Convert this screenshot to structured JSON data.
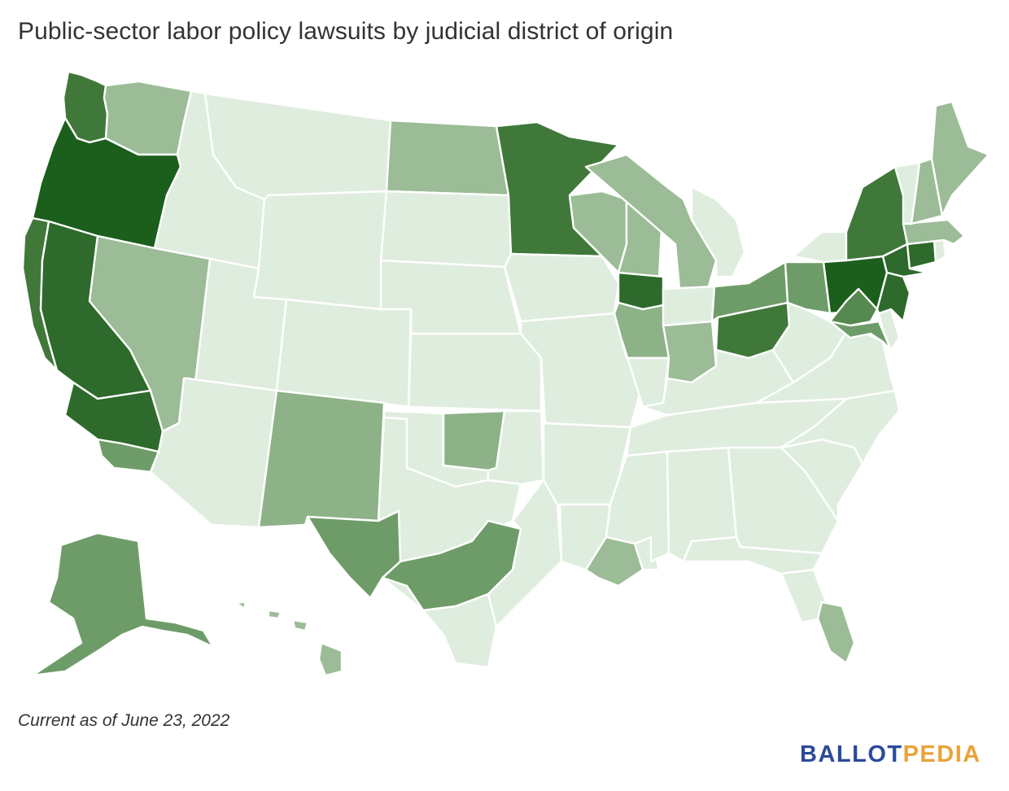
{
  "title": "Public-sector labor policy lawsuits by judicial district of origin",
  "footnote": "Current as of June 23, 2022",
  "logo": {
    "part1": "BALLOT",
    "part2": "PEDIA"
  },
  "colors": {
    "level0": "#dfeddf",
    "level1": "#9bbc96",
    "level2": "#8db287",
    "level3": "#6e9c68",
    "level4": "#55894f",
    "level5": "#40783a",
    "level6": "#2d6a2b",
    "level7": "#1c5e1c",
    "border": "#ffffff",
    "logo_blue": "#2b4a9b",
    "logo_gold": "#e8a33a"
  },
  "regions": [
    {
      "name": "washington-west",
      "level": 5
    },
    {
      "name": "washington-east",
      "level": 1
    },
    {
      "name": "oregon",
      "level": 7
    },
    {
      "name": "california-north",
      "level": 5
    },
    {
      "name": "california-east",
      "level": 6
    },
    {
      "name": "california-south",
      "level": 6
    },
    {
      "name": "california-central-coast",
      "level": 3
    },
    {
      "name": "nevada",
      "level": 1
    },
    {
      "name": "idaho",
      "level": 0
    },
    {
      "name": "montana",
      "level": 0
    },
    {
      "name": "wyoming",
      "level": 0
    },
    {
      "name": "utah",
      "level": 0
    },
    {
      "name": "arizona",
      "level": 0
    },
    {
      "name": "colorado",
      "level": 0
    },
    {
      "name": "new-mexico",
      "level": 2
    },
    {
      "name": "north-dakota",
      "level": 1
    },
    {
      "name": "south-dakota",
      "level": 0
    },
    {
      "name": "nebraska",
      "level": 0
    },
    {
      "name": "kansas",
      "level": 0
    },
    {
      "name": "oklahoma-west",
      "level": 0
    },
    {
      "name": "oklahoma-north",
      "level": 2
    },
    {
      "name": "oklahoma-east",
      "level": 0
    },
    {
      "name": "texas-north",
      "level": 0
    },
    {
      "name": "texas-west",
      "level": 3
    },
    {
      "name": "texas-central",
      "level": 3
    },
    {
      "name": "texas-south",
      "level": 0
    },
    {
      "name": "texas-east",
      "level": 0
    },
    {
      "name": "minnesota",
      "level": 5
    },
    {
      "name": "iowa",
      "level": 0
    },
    {
      "name": "missouri",
      "level": 0
    },
    {
      "name": "arkansas",
      "level": 0
    },
    {
      "name": "louisiana-west",
      "level": 0
    },
    {
      "name": "louisiana-middle",
      "level": 1
    },
    {
      "name": "louisiana-east",
      "level": 0
    },
    {
      "name": "wisconsin-west",
      "level": 1
    },
    {
      "name": "wisconsin-east",
      "level": 1
    },
    {
      "name": "illinois-north",
      "level": 6
    },
    {
      "name": "illinois-central",
      "level": 2
    },
    {
      "name": "illinois-south",
      "level": 0
    },
    {
      "name": "michigan-west",
      "level": 1
    },
    {
      "name": "michigan-east",
      "level": 0
    },
    {
      "name": "indiana-north",
      "level": 0
    },
    {
      "name": "indiana-south",
      "level": 1
    },
    {
      "name": "ohio-north",
      "level": 3
    },
    {
      "name": "ohio-south",
      "level": 5
    },
    {
      "name": "kentucky",
      "level": 0
    },
    {
      "name": "tennessee",
      "level": 0
    },
    {
      "name": "mississippi",
      "level": 0
    },
    {
      "name": "alabama",
      "level": 0
    },
    {
      "name": "georgia",
      "level": 0
    },
    {
      "name": "florida-north",
      "level": 0
    },
    {
      "name": "florida-middle",
      "level": 0
    },
    {
      "name": "florida-south",
      "level": 1
    },
    {
      "name": "south-carolina",
      "level": 0
    },
    {
      "name": "north-carolina",
      "level": 0
    },
    {
      "name": "virginia",
      "level": 0
    },
    {
      "name": "west-virginia",
      "level": 0
    },
    {
      "name": "pennsylvania-west",
      "level": 3
    },
    {
      "name": "pennsylvania-middle",
      "level": 7
    },
    {
      "name": "pennsylvania-east",
      "level": 4
    },
    {
      "name": "new-york-west",
      "level": 0
    },
    {
      "name": "new-york-north",
      "level": 5
    },
    {
      "name": "new-york-south",
      "level": 6
    },
    {
      "name": "new-jersey",
      "level": 6
    },
    {
      "name": "maryland",
      "level": 3
    },
    {
      "name": "delaware",
      "level": 0
    },
    {
      "name": "connecticut",
      "level": 6
    },
    {
      "name": "rhode-island",
      "level": 0
    },
    {
      "name": "massachusetts",
      "level": 1
    },
    {
      "name": "vermont",
      "level": 0
    },
    {
      "name": "new-hampshire",
      "level": 1
    },
    {
      "name": "maine",
      "level": 1
    },
    {
      "name": "alaska",
      "level": 3
    },
    {
      "name": "hawaii",
      "level": 1
    }
  ]
}
